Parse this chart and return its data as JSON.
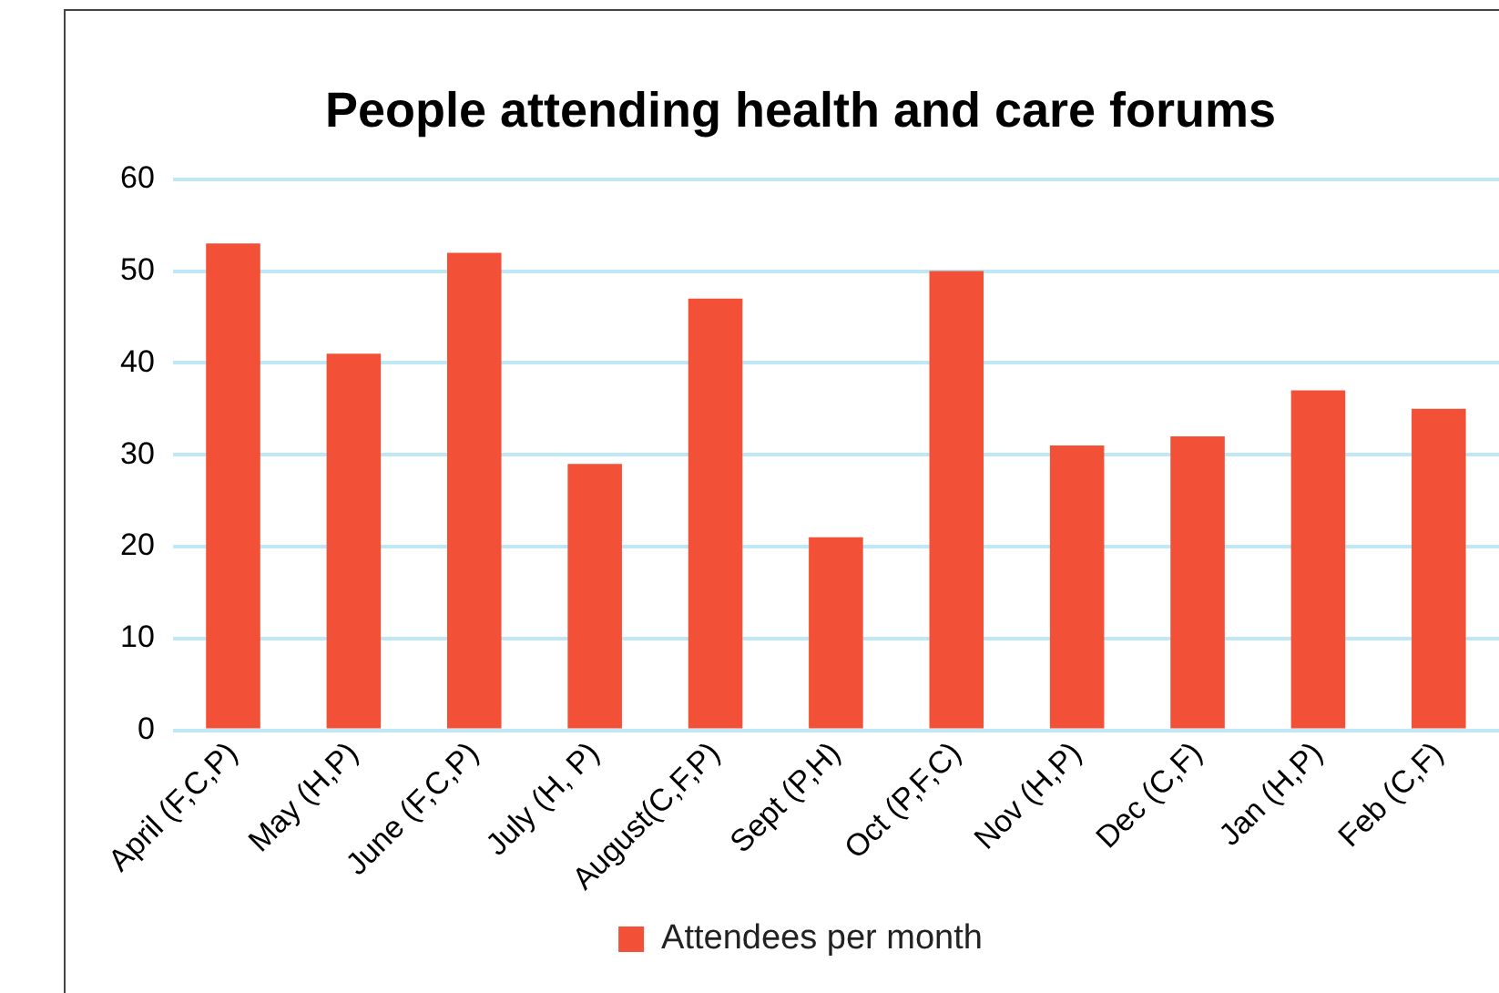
{
  "chart_data": {
    "type": "bar",
    "title": "People attending health and care forums",
    "categories": [
      "April (F,C,P)",
      "May (H,P)",
      "June (F,C,P)",
      "July (H, P)",
      "August(C,F,P)",
      "Sept (P,H)",
      "Oct (P,F,C)",
      "Nov (H,P)",
      "Dec (C,F)",
      "Jan (H,P)",
      "Feb (C,F)"
    ],
    "series": [
      {
        "name": "Attendees per month",
        "color": "#f25037",
        "values": [
          53,
          41,
          52,
          29,
          47,
          21,
          50,
          31,
          32,
          37,
          35
        ]
      }
    ],
    "ylim": [
      0,
      60
    ],
    "yticks": [
      0,
      10,
      20,
      30,
      40,
      50,
      60
    ],
    "grid": "y",
    "legend": "bottom"
  }
}
